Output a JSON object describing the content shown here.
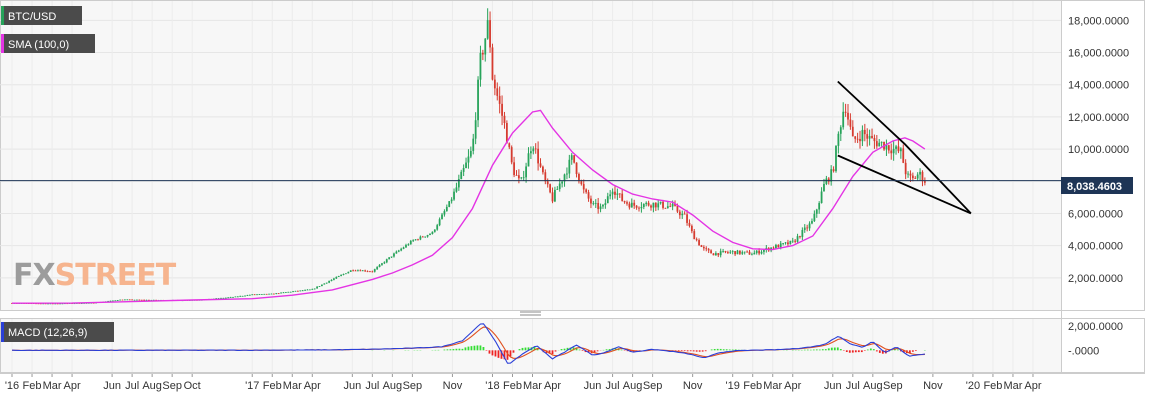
{
  "colors": {
    "up": "#27a35a",
    "down": "#d63b2f",
    "sma": "#e434e4",
    "macd": "#2a3fd8",
    "signal": "#e0501f",
    "hist_up": "#33dd33",
    "hist_down": "#ee2222",
    "price_line": "#1e3556",
    "tag_bg": "#4b4b4b",
    "trend": "#000000"
  },
  "legend": {
    "symbol": "BTC/USD",
    "sma": "SMA (100,0)",
    "macd": "MACD (12,26,9)"
  },
  "watermark": {
    "part1": "FX",
    "part2": "STREET"
  },
  "chart_data": {
    "type": "candlestick",
    "symbol": "BTC/USD",
    "current_price": 8038.4603,
    "current_price_label": "8,038.4603",
    "y_ticks": [
      "2,000.0000",
      "4,000.0000",
      "6,000.0000",
      "8,000.0000",
      "10,000.0000",
      "12,000.0000",
      "14,000.0000",
      "16,000.0000",
      "18,000.0000"
    ],
    "y_tick_values": [
      2000,
      4000,
      6000,
      8000,
      10000,
      12000,
      14000,
      16000,
      18000
    ],
    "ylim": [
      0,
      19200
    ],
    "x_ticks": [
      "'16",
      "Feb",
      "Mar",
      "Apr",
      "Jun",
      "Jul",
      "Aug",
      "Sep",
      "Oct",
      "'17",
      "Feb",
      "Mar",
      "Apr",
      "Jun",
      "Jul",
      "Aug",
      "Sep",
      "Nov",
      "'18",
      "Feb",
      "Mar",
      "Apr",
      "Jun",
      "Jul",
      "Aug",
      "Sep",
      "Nov",
      "'19",
      "Feb",
      "Mar",
      "Apr",
      "Jun",
      "Jul",
      "Aug",
      "Sep",
      "Nov",
      "'20",
      "Feb",
      "Mar",
      "Apr"
    ],
    "x_tick_months": [
      0,
      1,
      2,
      3,
      5,
      6,
      7,
      8,
      9,
      12,
      13,
      14,
      15,
      17,
      18,
      19,
      20,
      22,
      24,
      25,
      26,
      27,
      29,
      30,
      31,
      32,
      34,
      36,
      37,
      38,
      39,
      41,
      42,
      43,
      44,
      46,
      48,
      49,
      50,
      51
    ],
    "x_range_months": [
      -0.6,
      52.4
    ],
    "price_anchors": [
      [
        0.0,
        430
      ],
      [
        2.0,
        400
      ],
      [
        4.0,
        440
      ],
      [
        5.5,
        650
      ],
      [
        7.0,
        620
      ],
      [
        8.5,
        610
      ],
      [
        9.5,
        640
      ],
      [
        11.0,
        800
      ],
      [
        12.0,
        960
      ],
      [
        13.0,
        1000
      ],
      [
        14.0,
        1150
      ],
      [
        15.0,
        1280
      ],
      [
        16.0,
        1900
      ],
      [
        17.0,
        2500
      ],
      [
        18.0,
        2400
      ],
      [
        19.0,
        3400
      ],
      [
        20.0,
        4300
      ],
      [
        21.0,
        4800
      ],
      [
        22.0,
        7000
      ],
      [
        23.0,
        10000
      ],
      [
        23.4,
        15500
      ],
      [
        23.8,
        17900
      ],
      [
        24.0,
        14500
      ],
      [
        24.6,
        11500
      ],
      [
        25.0,
        8800
      ],
      [
        25.4,
        7800
      ],
      [
        26.0,
        10500
      ],
      [
        26.6,
        8000
      ],
      [
        27.0,
        6900
      ],
      [
        27.5,
        8200
      ],
      [
        28.0,
        9500
      ],
      [
        28.5,
        7500
      ],
      [
        29.0,
        6500
      ],
      [
        29.5,
        6300
      ],
      [
        30.0,
        7600
      ],
      [
        30.5,
        6800
      ],
      [
        31.0,
        6500
      ],
      [
        32.0,
        6600
      ],
      [
        33.0,
        6400
      ],
      [
        33.6,
        5800
      ],
      [
        34.0,
        4700
      ],
      [
        34.5,
        3800
      ],
      [
        35.0,
        3500
      ],
      [
        36.0,
        3600
      ],
      [
        37.0,
        3500
      ],
      [
        38.0,
        3900
      ],
      [
        39.0,
        4200
      ],
      [
        40.0,
        5500
      ],
      [
        40.6,
        7900
      ],
      [
        41.0,
        8600
      ],
      [
        41.3,
        11000
      ],
      [
        41.6,
        12900
      ],
      [
        42.0,
        10500
      ],
      [
        42.5,
        11000
      ],
      [
        43.0,
        10500
      ],
      [
        43.5,
        10300
      ],
      [
        44.0,
        10000
      ],
      [
        44.4,
        9800
      ],
      [
        44.7,
        8300
      ],
      [
        45.0,
        8100
      ],
      [
        45.3,
        8500
      ],
      [
        45.6,
        8038
      ]
    ],
    "sma_anchors": [
      [
        0.0,
        420
      ],
      [
        3.0,
        430
      ],
      [
        6.0,
        520
      ],
      [
        9.0,
        620
      ],
      [
        12.0,
        700
      ],
      [
        14.0,
        920
      ],
      [
        16.0,
        1250
      ],
      [
        18.0,
        1900
      ],
      [
        19.0,
        2300
      ],
      [
        20.0,
        2800
      ],
      [
        21.0,
        3400
      ],
      [
        22.0,
        4500
      ],
      [
        23.0,
        6300
      ],
      [
        24.0,
        9000
      ],
      [
        25.0,
        11000
      ],
      [
        26.0,
        12300
      ],
      [
        26.4,
        12400
      ],
      [
        27.0,
        11300
      ],
      [
        28.0,
        9800
      ],
      [
        29.0,
        8700
      ],
      [
        30.0,
        7800
      ],
      [
        31.0,
        7200
      ],
      [
        32.0,
        6900
      ],
      [
        33.0,
        6700
      ],
      [
        34.0,
        5900
      ],
      [
        35.0,
        4900
      ],
      [
        36.0,
        4200
      ],
      [
        37.0,
        3800
      ],
      [
        38.0,
        3750
      ],
      [
        39.0,
        4000
      ],
      [
        40.0,
        4600
      ],
      [
        41.0,
        6300
      ],
      [
        42.0,
        8300
      ],
      [
        43.0,
        9800
      ],
      [
        44.0,
        10500
      ],
      [
        44.6,
        10700
      ],
      [
        45.0,
        10500
      ],
      [
        45.6,
        10000
      ]
    ],
    "trendlines": [
      [
        [
          41.25,
          14200
        ],
        [
          44.6,
          10300
        ],
        [
          47.9,
          6000
        ]
      ],
      [
        [
          41.25,
          9600
        ],
        [
          47.9,
          6000
        ]
      ]
    ],
    "macd_panel": {
      "y_ticks": [
        "2,000.0000",
        "-.0000"
      ],
      "y_tick_values": [
        2000,
        0
      ],
      "ylim": [
        -1800,
        2600
      ],
      "macd_anchors": [
        [
          0,
          0
        ],
        [
          12,
          10
        ],
        [
          16,
          40
        ],
        [
          18,
          90
        ],
        [
          20,
          180
        ],
        [
          21.5,
          300
        ],
        [
          22.5,
          800
        ],
        [
          23.5,
          2350
        ],
        [
          24.2,
          600
        ],
        [
          24.8,
          -1200
        ],
        [
          25.5,
          -300
        ],
        [
          26.2,
          400
        ],
        [
          27,
          -700
        ],
        [
          27.6,
          -150
        ],
        [
          28.2,
          450
        ],
        [
          29,
          -400
        ],
        [
          29.6,
          -200
        ],
        [
          30.3,
          300
        ],
        [
          31,
          -150
        ],
        [
          32,
          80
        ],
        [
          33,
          -100
        ],
        [
          33.8,
          -300
        ],
        [
          34.6,
          -650
        ],
        [
          35.3,
          -200
        ],
        [
          36,
          -50
        ],
        [
          37,
          10
        ],
        [
          38,
          40
        ],
        [
          39,
          120
        ],
        [
          40,
          300
        ],
        [
          40.6,
          500
        ],
        [
          41.3,
          1200
        ],
        [
          41.9,
          500
        ],
        [
          42.5,
          250
        ],
        [
          43,
          750
        ],
        [
          43.6,
          -200
        ],
        [
          44.2,
          300
        ],
        [
          44.8,
          -500
        ],
        [
          45.6,
          -300
        ]
      ]
    }
  }
}
